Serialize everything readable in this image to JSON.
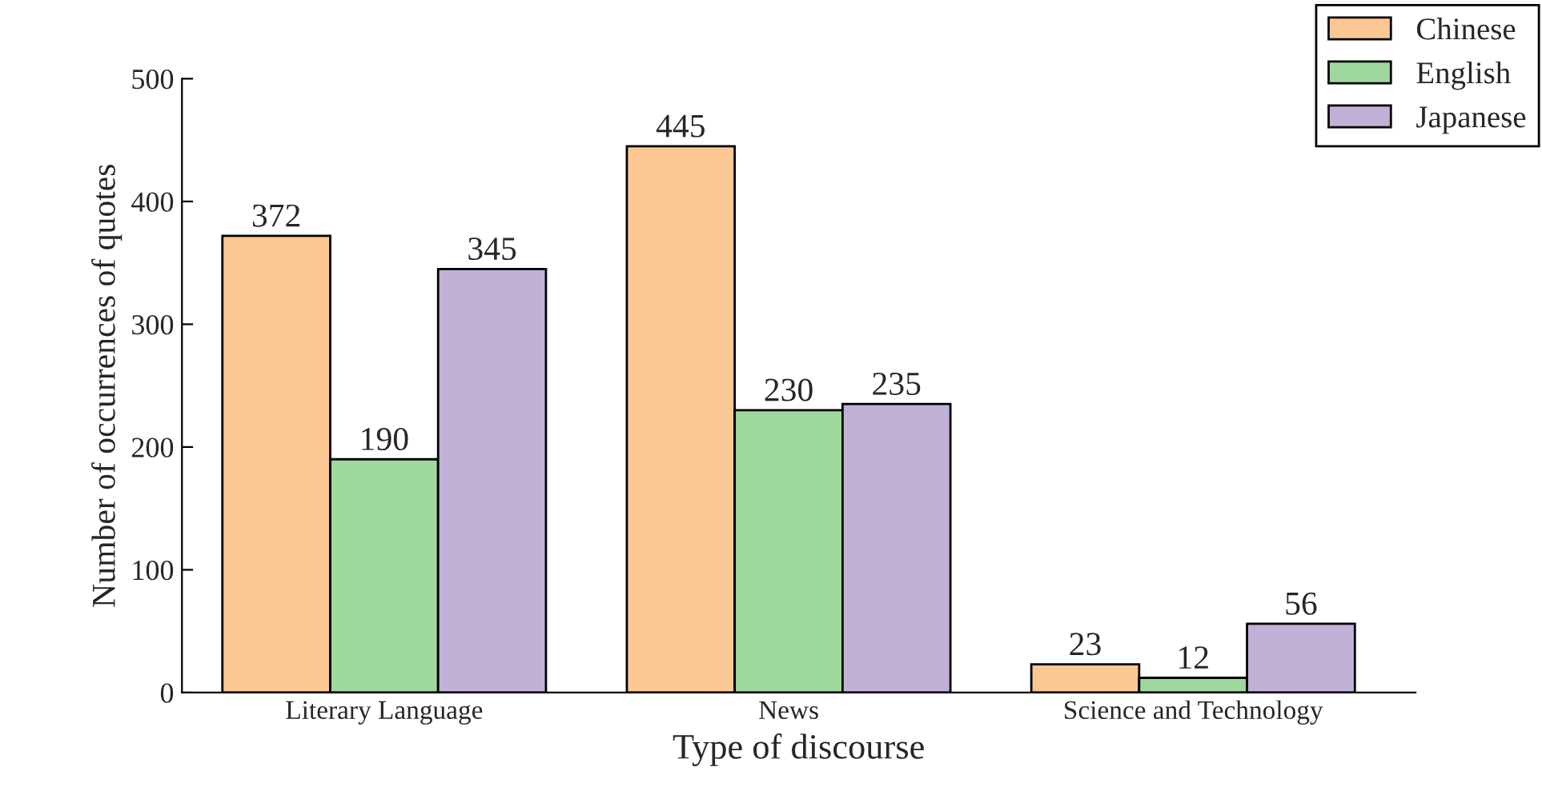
{
  "chart_data": {
    "type": "bar",
    "xlabel": "Type of discourse",
    "ylabel": "Number of occurrences of quotes",
    "categories": [
      "Literary Language",
      "News",
      "Science and Technology"
    ],
    "series": [
      {
        "name": "Chinese",
        "color": "#fbc793",
        "values": [
          372,
          445,
          23
        ]
      },
      {
        "name": "English",
        "color": "#9fd89c",
        "values": [
          190,
          230,
          12
        ]
      },
      {
        "name": "Japanese",
        "color": "#c1b1d7",
        "values": [
          345,
          235,
          56
        ]
      }
    ],
    "ylim": [
      0,
      500
    ],
    "yticks": [
      0,
      100,
      200,
      300,
      400,
      500
    ],
    "data_labels": true,
    "grid": false,
    "legend": "top right"
  }
}
